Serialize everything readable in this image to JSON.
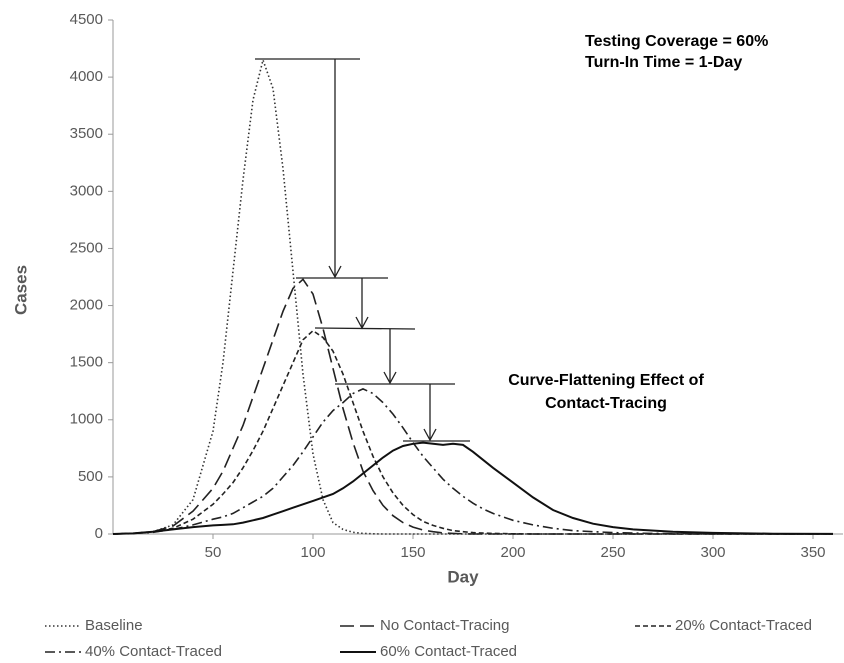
{
  "chart_data": {
    "type": "line",
    "annotations": [
      "Testing Coverage = 60%",
      "Turn-In Time = 1-Day",
      "Curve-Flattening Effect of",
      "Contact-Tracing"
    ],
    "x_label": "Day",
    "y_label": "Cases",
    "xlim": [
      0,
      365
    ],
    "xticks": [
      50,
      100,
      150,
      200,
      250,
      300,
      350
    ],
    "ylim": [
      0,
      4500
    ],
    "yticks": [
      0,
      500,
      1000,
      1500,
      2000,
      2500,
      3000,
      3500,
      4000,
      4500
    ],
    "x": [
      0,
      10,
      20,
      30,
      40,
      50,
      55,
      60,
      65,
      70,
      75,
      80,
      85,
      90,
      95,
      100,
      105,
      110,
      115,
      120,
      125,
      130,
      135,
      140,
      145,
      150,
      155,
      160,
      165,
      170,
      175,
      180,
      185,
      190,
      200,
      210,
      220,
      230,
      240,
      250,
      260,
      280,
      300,
      330,
      360
    ],
    "series": [
      {
        "name": "Baseline",
        "color": "#333333",
        "dash": "1.5 2.5",
        "values": [
          0,
          5,
          20,
          80,
          300,
          900,
          1500,
          2300,
          3100,
          3800,
          4150,
          3900,
          3200,
          2300,
          1400,
          700,
          300,
          100,
          40,
          15,
          5,
          2,
          0,
          0,
          0,
          0,
          0,
          0,
          0,
          0,
          0,
          0,
          0,
          0,
          0,
          0,
          0,
          0,
          0,
          0,
          0,
          0,
          0,
          0,
          0
        ]
      },
      {
        "name": "No Contact-Tracing",
        "color": "#222222",
        "dash": "14 6",
        "values": [
          0,
          5,
          20,
          70,
          200,
          400,
          550,
          750,
          950,
          1200,
          1450,
          1700,
          1950,
          2150,
          2230,
          2100,
          1800,
          1450,
          1100,
          800,
          550,
          380,
          250,
          160,
          100,
          60,
          35,
          20,
          10,
          5,
          2,
          0,
          0,
          0,
          0,
          0,
          0,
          0,
          0,
          0,
          0,
          0,
          0,
          0,
          0
        ]
      },
      {
        "name": "20% Contact-Traced",
        "color": "#222222",
        "dash": "5 3",
        "values": [
          0,
          5,
          20,
          50,
          130,
          260,
          350,
          450,
          580,
          730,
          900,
          1100,
          1300,
          1500,
          1700,
          1780,
          1720,
          1600,
          1400,
          1150,
          900,
          680,
          500,
          360,
          250,
          170,
          110,
          75,
          50,
          30,
          20,
          12,
          8,
          5,
          2,
          0,
          0,
          0,
          0,
          0,
          0,
          0,
          0,
          0,
          0
        ]
      },
      {
        "name": "40% Contact-Traced",
        "color": "#222222",
        "dash": "10 4 2 4",
        "values": [
          0,
          5,
          15,
          40,
          80,
          130,
          150,
          180,
          230,
          280,
          330,
          400,
          500,
          600,
          720,
          850,
          980,
          1080,
          1150,
          1230,
          1270,
          1230,
          1150,
          1050,
          930,
          800,
          680,
          580,
          480,
          400,
          330,
          270,
          220,
          180,
          120,
          80,
          50,
          30,
          20,
          12,
          8,
          3,
          1,
          0,
          0
        ]
      },
      {
        "name": "60% Contact-Traced",
        "color": "#111111",
        "dash": "none",
        "values": [
          0,
          5,
          20,
          40,
          60,
          75,
          80,
          85,
          100,
          120,
          140,
          170,
          200,
          230,
          260,
          290,
          320,
          350,
          400,
          460,
          530,
          600,
          670,
          730,
          770,
          790,
          800,
          790,
          780,
          790,
          780,
          720,
          650,
          580,
          450,
          320,
          210,
          140,
          90,
          60,
          40,
          20,
          10,
          3,
          1
        ]
      }
    ]
  }
}
